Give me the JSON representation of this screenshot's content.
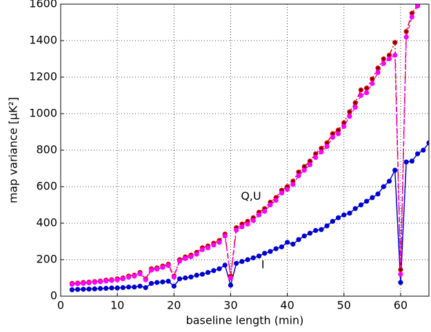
{
  "chart_data": {
    "type": "line",
    "xlabel": "baseline length (min)",
    "ylabel": "map variance [μK²]",
    "annotations": [
      "Q,U",
      "I"
    ],
    "x": [
      2,
      3,
      4,
      5,
      6,
      7,
      8,
      9,
      10,
      11,
      12,
      13,
      14,
      15,
      16,
      17,
      18,
      19,
      20,
      21,
      22,
      23,
      24,
      25,
      26,
      27,
      28,
      29,
      30,
      31,
      32,
      33,
      34,
      35,
      36,
      37,
      38,
      39,
      40,
      41,
      42,
      43,
      44,
      45,
      46,
      47,
      48,
      49,
      50,
      51,
      52,
      53,
      54,
      55,
      56,
      57,
      58,
      59,
      60,
      61,
      62,
      63,
      64,
      65
    ],
    "series": [
      {
        "name": "I",
        "color": "#0000cc",
        "values": [
          35,
          37,
          38,
          39,
          40,
          42,
          43,
          45,
          45,
          47,
          50,
          50,
          55,
          47,
          70,
          75,
          78,
          82,
          55,
          95,
          100,
          105,
          115,
          120,
          130,
          140,
          150,
          170,
          60,
          180,
          190,
          200,
          210,
          220,
          235,
          245,
          260,
          270,
          295,
          285,
          310,
          330,
          345,
          360,
          365,
          385,
          410,
          430,
          445,
          455,
          480,
          500,
          520,
          540,
          560,
          600,
          630,
          690,
          75,
          735,
          740,
          780,
          800,
          840
        ]
      },
      {
        "name": "Q",
        "color": "#cc0000",
        "values": [
          70,
          72,
          75,
          77,
          80,
          83,
          88,
          90,
          95,
          100,
          110,
          115,
          130,
          95,
          150,
          155,
          165,
          175,
          110,
          200,
          215,
          225,
          240,
          265,
          275,
          290,
          305,
          340,
          110,
          375,
          395,
          410,
          430,
          460,
          480,
          515,
          540,
          580,
          600,
          630,
          680,
          710,
          740,
          780,
          810,
          840,
          890,
          910,
          950,
          1010,
          1060,
          1130,
          1140,
          1190,
          1250,
          1300,
          1320,
          1390,
          145,
          1450,
          1550,
          1595,
          null,
          null
        ]
      },
      {
        "name": "U",
        "color": "#ff00ff",
        "values": [
          65,
          68,
          70,
          73,
          76,
          79,
          83,
          86,
          90,
          95,
          104,
          110,
          123,
          90,
          143,
          148,
          158,
          168,
          105,
          192,
          206,
          216,
          230,
          255,
          265,
          280,
          295,
          330,
          100,
          362,
          380,
          395,
          415,
          445,
          465,
          500,
          525,
          565,
          585,
          612,
          660,
          690,
          720,
          760,
          790,
          820,
          870,
          890,
          930,
          985,
          1035,
          1100,
          1115,
          1165,
          1225,
          1275,
          1300,
          1320,
          120,
          1420,
          1530,
          1590,
          null,
          null
        ]
      }
    ],
    "xlim": [
      0,
      65
    ],
    "xticks": [
      0,
      10,
      20,
      30,
      40,
      50,
      60
    ],
    "ylim": [
      0,
      1600
    ],
    "yticks": [
      0,
      200,
      400,
      600,
      800,
      1000,
      1200,
      1400,
      1600
    ],
    "grid": true
  }
}
